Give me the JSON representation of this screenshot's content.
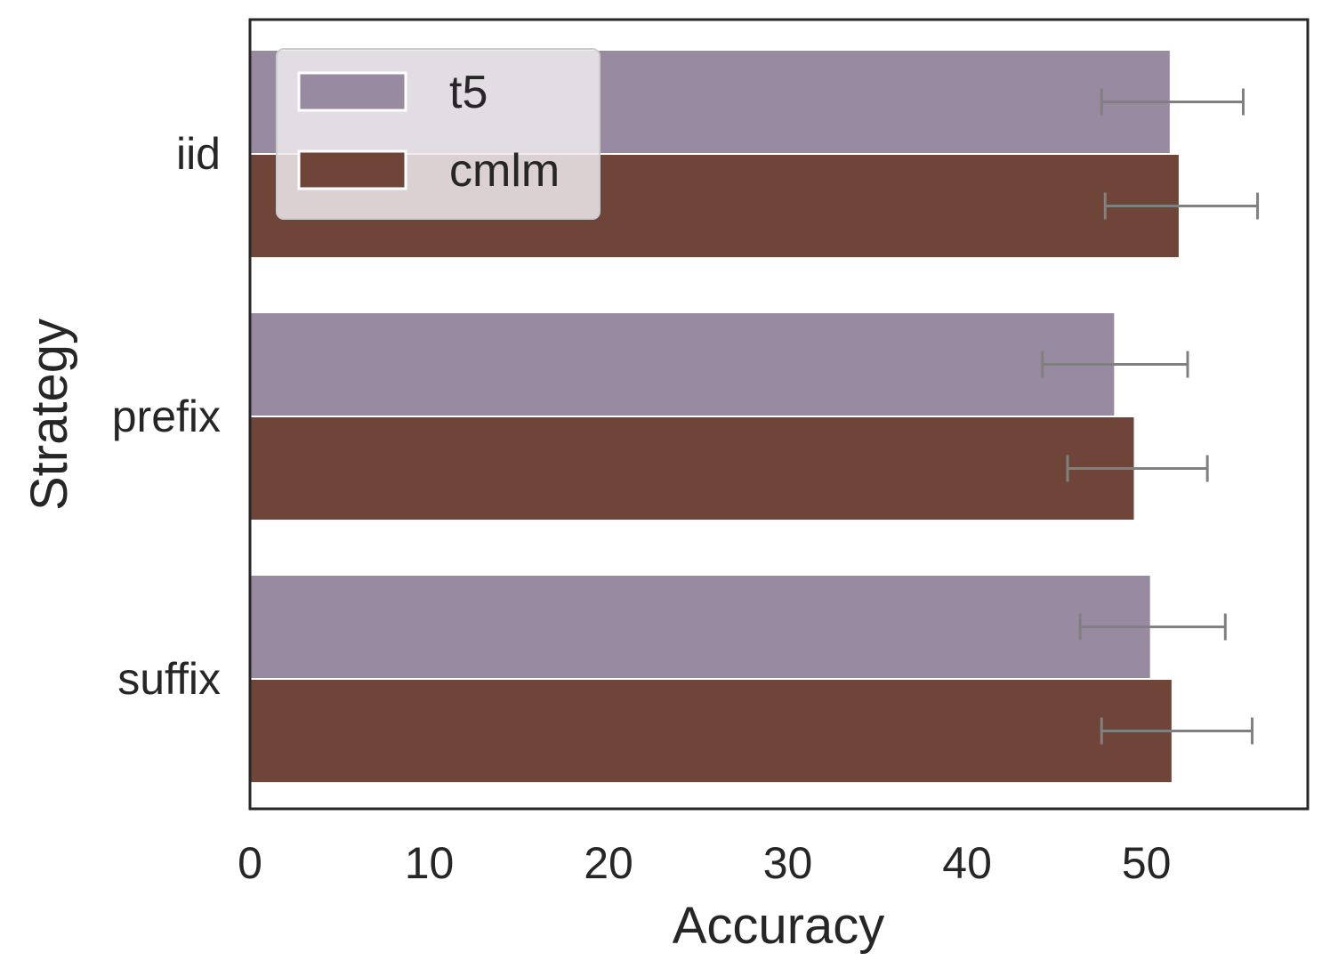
{
  "chart_data": {
    "type": "bar",
    "orientation": "horizontal",
    "categories": [
      "iid",
      "prefix",
      "suffix"
    ],
    "series": [
      {
        "name": "t5",
        "color": "#988aa0",
        "values": [
          51.3,
          48.2,
          50.2
        ],
        "error": [
          [
            47.5,
            55.4
          ],
          [
            44.2,
            52.3
          ],
          [
            46.3,
            54.4
          ]
        ]
      },
      {
        "name": "cmlm",
        "color": "#6f453a",
        "values": [
          51.8,
          49.3,
          51.4
        ],
        "error": [
          [
            47.7,
            56.2
          ],
          [
            45.6,
            53.4
          ],
          [
            47.5,
            55.9
          ]
        ]
      }
    ],
    "xlabel": "Accuracy",
    "ylabel": "Strategy",
    "xlim": [
      0,
      59
    ],
    "xticks": [
      0,
      10,
      20,
      30,
      40,
      50
    ],
    "grid": false,
    "legend_position": "top-left",
    "error_color": "#808080"
  }
}
